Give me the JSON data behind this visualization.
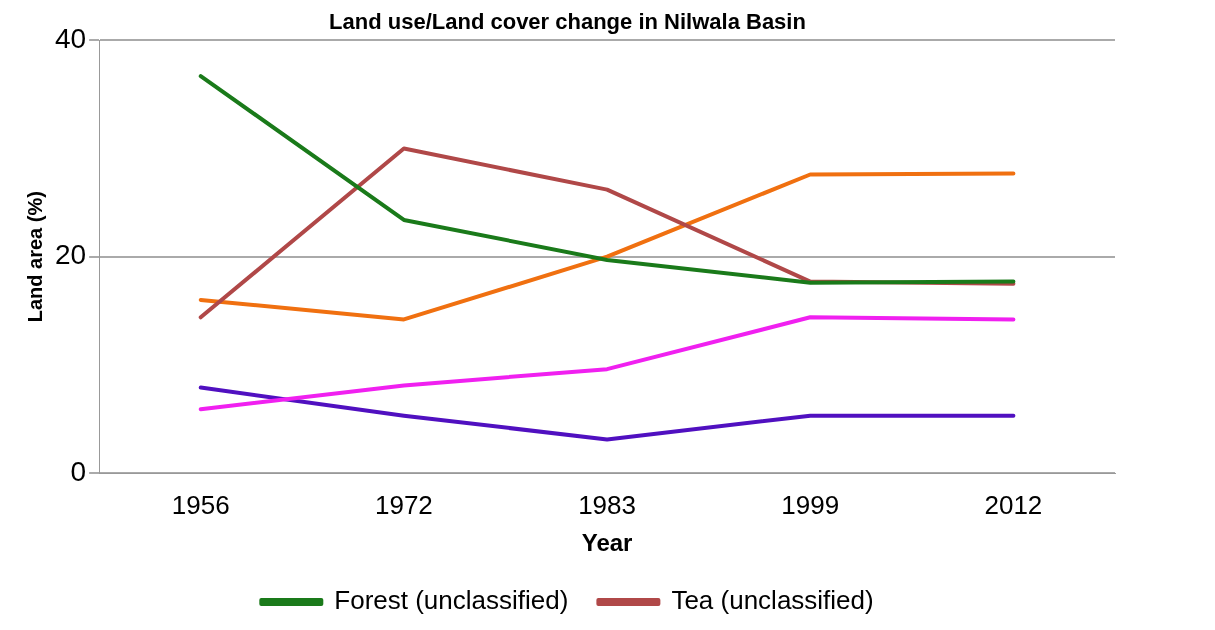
{
  "chart_data": {
    "type": "line",
    "title": "Land use/Land cover change in Nilwala Basin",
    "xlabel": "Year",
    "ylabel": "Land area (%)",
    "categories": [
      "1956",
      "1972",
      "1983",
      "1999",
      "2012"
    ],
    "series": [
      {
        "name": "Forest (unclassified)",
        "color": "#1a7a1a",
        "values": [
          36.7,
          23.4,
          19.7,
          17.6,
          17.7
        ]
      },
      {
        "name": "Tea (unclassified)",
        "color": "#b04848",
        "values": [
          14.4,
          30,
          26.2,
          17.7,
          17.5
        ]
      },
      {
        "color": "#f07010",
        "values": [
          16,
          14.2,
          20,
          27.6,
          27.7
        ]
      },
      {
        "color": "#f020f0",
        "values": [
          5.9,
          8.1,
          9.6,
          14.4,
          14.2
        ]
      },
      {
        "color": "#5010c0",
        "values": [
          7.9,
          5.3,
          3.1,
          5.3,
          5.3
        ]
      }
    ],
    "ylim": [
      0,
      40
    ],
    "yticks": [
      0,
      20,
      40
    ],
    "grid": "y",
    "legend": "bottom",
    "marker": "none",
    "line_style": "solid"
  }
}
